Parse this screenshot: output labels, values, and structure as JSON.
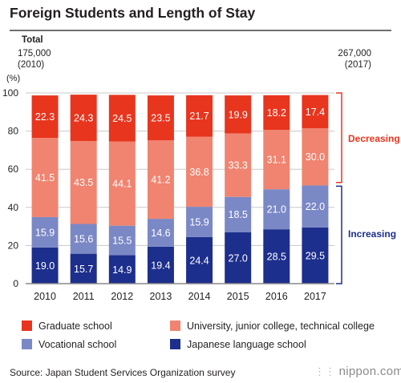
{
  "header": {
    "title": "Foreign Students and Length of Stay",
    "total_label": "Total",
    "left_total": "175,000",
    "left_year": "(2010)",
    "right_total": "267,000",
    "right_year": "(2017)",
    "unit": "(%)"
  },
  "chart_data": {
    "type": "bar",
    "stacked": true,
    "title": "Foreign Students and Length of Stay",
    "categories": [
      "2010",
      "2011",
      "2012",
      "2013",
      "2014",
      "2015",
      "2016",
      "2017"
    ],
    "ylim": [
      0,
      100
    ],
    "yticks": [
      0,
      20,
      40,
      60,
      80,
      100
    ],
    "ylabel": "(%)",
    "series": [
      {
        "name": "Japanese language school",
        "color": "#1d2f8c",
        "values": [
          19.0,
          15.7,
          14.9,
          19.4,
          24.4,
          27.0,
          28.5,
          29.5
        ]
      },
      {
        "name": "Vocational school",
        "color": "#7b88c6",
        "values": [
          15.9,
          15.6,
          15.5,
          14.6,
          15.9,
          18.5,
          21.0,
          22.0
        ]
      },
      {
        "name": "University, junior college, technical college",
        "color": "#f08470",
        "values": [
          41.5,
          43.5,
          44.1,
          41.2,
          36.8,
          33.3,
          31.1,
          30.0
        ]
      },
      {
        "name": "Graduate school",
        "color": "#e8351e",
        "values": [
          22.3,
          24.3,
          24.5,
          23.5,
          21.7,
          19.9,
          18.2,
          17.4
        ]
      }
    ],
    "annotations": {
      "decreasing": {
        "text": "Decreasing",
        "color": "#e8351e"
      },
      "increasing": {
        "text": "Increasing",
        "color": "#1d2f8c"
      }
    }
  },
  "legend": [
    {
      "label": "Graduate school",
      "color": "#e8351e"
    },
    {
      "label": "University, junior college, technical college",
      "color": "#f08470"
    },
    {
      "label": "Vocational school",
      "color": "#7b88c6"
    },
    {
      "label": "Japanese language school",
      "color": "#1d2f8c"
    }
  ],
  "footer": {
    "source": "Source: Japan Student Services Organization survey",
    "brand": "nippon.com"
  }
}
